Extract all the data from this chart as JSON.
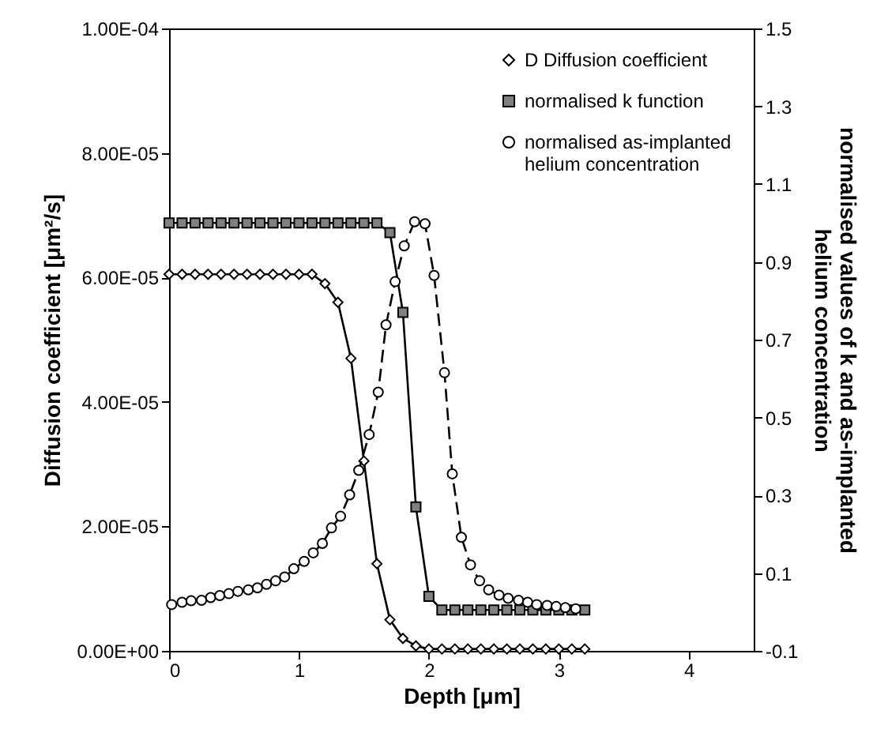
{
  "chart_data": {
    "type": "line",
    "xlabel": "Depth [μm]",
    "ylabel": "Diffusion coefficient [μm²/s]",
    "y2label": "normalised values of k and as-implanted\nhelium concentration",
    "x": [
      0,
      0.1,
      0.2,
      0.3,
      0.4,
      0.5,
      0.6,
      0.7,
      0.8,
      0.9,
      1.0,
      1.1,
      1.2,
      1.3,
      1.4,
      1.5,
      1.6,
      1.7,
      1.8,
      1.9,
      2.0,
      2.1,
      2.2,
      2.3,
      2.4,
      2.5,
      2.6,
      2.7,
      2.8,
      2.9,
      3.0,
      3.1,
      3.2
    ],
    "xlim": [
      0,
      4.5
    ],
    "xticks": [
      0,
      1,
      2,
      3,
      4
    ],
    "ylim": [
      0,
      0.0001
    ],
    "yticks": [
      {
        "value": 0,
        "label": "0.00E+00"
      },
      {
        "value": 2e-05,
        "label": "2.00E-05"
      },
      {
        "value": 4e-05,
        "label": "4.00E-05"
      },
      {
        "value": 6e-05,
        "label": "6.00E-05"
      },
      {
        "value": 8e-05,
        "label": "8.00E-05"
      },
      {
        "value": 0.0001,
        "label": "1.00E-04"
      }
    ],
    "y2lim": [
      -0.1,
      1.5
    ],
    "y2ticks": [
      -0.1,
      0.1,
      0.3,
      0.5,
      0.7,
      0.9,
      1.1,
      1.3,
      1.5
    ],
    "legend": "top right",
    "series": [
      {
        "name": "D  Diffusion coefficient",
        "color": "#ffffff",
        "marker": "diamond",
        "line_style": "solid",
        "values": [
          6.05e-05,
          6.05e-05,
          6.05e-05,
          6.05e-05,
          6.05e-05,
          6.05e-05,
          6.05e-05,
          6.05e-05,
          6.05e-05,
          6.05e-05,
          6.05e-05,
          6.05e-05,
          5.9e-05,
          5.6e-05,
          4.7e-05,
          3.05e-05,
          1.4e-05,
          5e-06,
          2e-06,
          8e-07,
          3e-07,
          3e-07,
          3e-07,
          3e-07,
          3e-07,
          3e-07,
          3e-07,
          3e-07,
          3e-07,
          3e-07,
          3e-07,
          3e-07,
          3e-07
        ]
      },
      {
        "name": "normalised k function",
        "color": "#808080",
        "marker": "square",
        "line_style": "solid",
        "axis": "y2",
        "values": [
          1.0,
          1.0,
          1.0,
          1.0,
          1.0,
          1.0,
          1.0,
          1.0,
          1.0,
          1.0,
          1.0,
          1.0,
          1.0,
          1.0,
          1.0,
          1.0,
          1.0,
          0.975,
          0.77,
          0.27,
          0.04,
          0.005,
          0.005,
          0.005,
          0.005,
          0.005,
          0.005,
          0.005,
          0.005,
          0.005,
          0.005,
          0.005,
          0.005
        ]
      },
      {
        "name": "normalised as-implanted helium concentration",
        "color": "#ffffff",
        "marker": "circle",
        "line_style": "dashed",
        "axis": "y2",
        "x": [
          0.02,
          0.1,
          0.17,
          0.25,
          0.32,
          0.39,
          0.46,
          0.53,
          0.61,
          0.68,
          0.75,
          0.82,
          0.89,
          0.96,
          1.04,
          1.11,
          1.18,
          1.25,
          1.32,
          1.39,
          1.46,
          1.54,
          1.61,
          1.67,
          1.74,
          1.81,
          1.89,
          1.97,
          2.04,
          2.12,
          2.18,
          2.25,
          2.32,
          2.39,
          2.46,
          2.54,
          2.61,
          2.69,
          2.76,
          2.83,
          2.91,
          2.98,
          3.05,
          3.13
        ],
        "values": [
          0.019,
          0.025,
          0.029,
          0.03,
          0.037,
          0.042,
          0.047,
          0.053,
          0.057,
          0.062,
          0.071,
          0.08,
          0.09,
          0.111,
          0.13,
          0.152,
          0.176,
          0.216,
          0.246,
          0.301,
          0.364,
          0.456,
          0.565,
          0.738,
          0.849,
          0.941,
          1.003,
          0.998,
          0.865,
          0.615,
          0.355,
          0.192,
          0.121,
          0.08,
          0.057,
          0.043,
          0.035,
          0.03,
          0.025,
          0.019,
          0.017,
          0.014,
          0.011,
          0.008
        ]
      }
    ]
  }
}
